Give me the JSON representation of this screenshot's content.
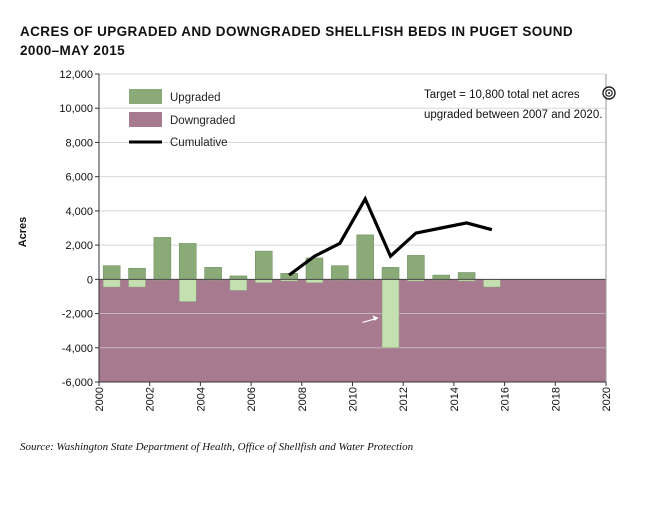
{
  "title": {
    "line1": "Acres of Upgraded and Downgraded Shellfish Beds in Puget Sound",
    "line2": "2000–May 2015"
  },
  "source": "Source: Washington State Department of Health, Office of Shellfish and Water Protection",
  "colors": {
    "upgraded": "#8aaa78",
    "downgraded": "#a87a90",
    "downgraded_bar": "#c5e0b0",
    "cumulative": "#000000"
  },
  "chart_data": {
    "type": "bar",
    "xlim": [
      2000,
      2020
    ],
    "ylim": [
      -6000,
      12000
    ],
    "ylabel": "Acres",
    "yticks": [
      -6000,
      -4000,
      -2000,
      0,
      2000,
      4000,
      6000,
      8000,
      10000,
      12000
    ],
    "ytick_labels": [
      "-6,000",
      "-4,000",
      "-2,000",
      "0",
      "2,000",
      "4,000",
      "6,000",
      "8,000",
      "10,000",
      "12,000"
    ],
    "xtick_labels": [
      "2000",
      "2002",
      "2004",
      "2006",
      "2008",
      "2010",
      "2012",
      "2014",
      "2016",
      "2018",
      "2020"
    ],
    "grid": true,
    "legend_placement": "top-left",
    "legend": [
      "Upgraded",
      "Downgraded",
      "Cumulative"
    ],
    "annotation": "Target = 10,800 total net acres upgraded between 2007 and 2020.",
    "years": [
      2000,
      2001,
      2002,
      2003,
      2004,
      2005,
      2006,
      2007,
      2008,
      2009,
      2010,
      2011,
      2012,
      2013,
      2014,
      2015
    ],
    "series": [
      {
        "name": "Upgraded",
        "values": [
          800,
          650,
          2450,
          2100,
          700,
          200,
          1650,
          350,
          1250,
          800,
          2600,
          700,
          1400,
          250,
          400,
          0
        ]
      },
      {
        "name": "Downgraded",
        "values": [
          -450,
          -450,
          -50,
          -1300,
          -50,
          -650,
          -200,
          -100,
          -200,
          -50,
          -50,
          -4000,
          -100,
          -50,
          -100,
          -450
        ]
      },
      {
        "name": "Cumulative",
        "x": [
          2007,
          2008,
          2009,
          2010,
          2011,
          2012,
          2013,
          2014,
          2015
        ],
        "values": [
          250,
          1350,
          2100,
          4700,
          1350,
          2700,
          3000,
          3300,
          2900
        ]
      }
    ]
  }
}
